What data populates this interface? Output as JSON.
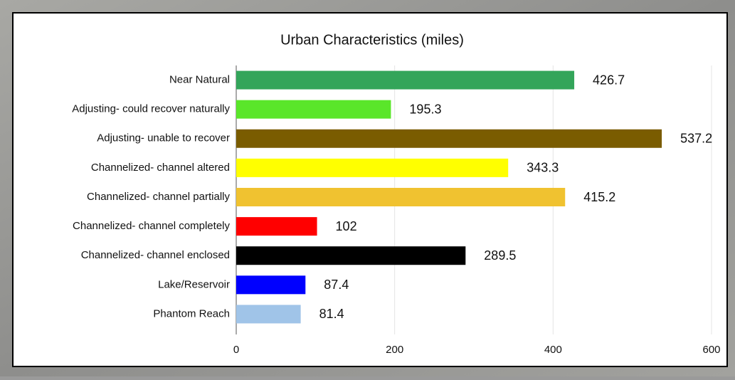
{
  "chart_data": {
    "type": "bar",
    "orientation": "horizontal",
    "title": "Urban Characteristics (miles)",
    "categories": [
      "Near Natural",
      "Adjusting- could recover naturally",
      "Adjusting- unable to recover",
      "Channelized- channel altered",
      "Channelized- channel partially",
      "Channelized- channel completely",
      "Channelized- channel enclosed",
      "Lake/Reservoir",
      "Phantom Reach"
    ],
    "values": [
      426.7,
      195.3,
      537.2,
      343.3,
      415.2,
      102,
      289.5,
      87.4,
      81.4
    ],
    "colors": [
      "#33a55a",
      "#5ae62a",
      "#7a5c00",
      "#ffff00",
      "#f0c230",
      "#ff0000",
      "#000000",
      "#0000ff",
      "#a0c4e8"
    ],
    "xlim": [
      0,
      600
    ],
    "xticks": [
      0,
      200,
      400,
      600
    ],
    "grid": true
  }
}
